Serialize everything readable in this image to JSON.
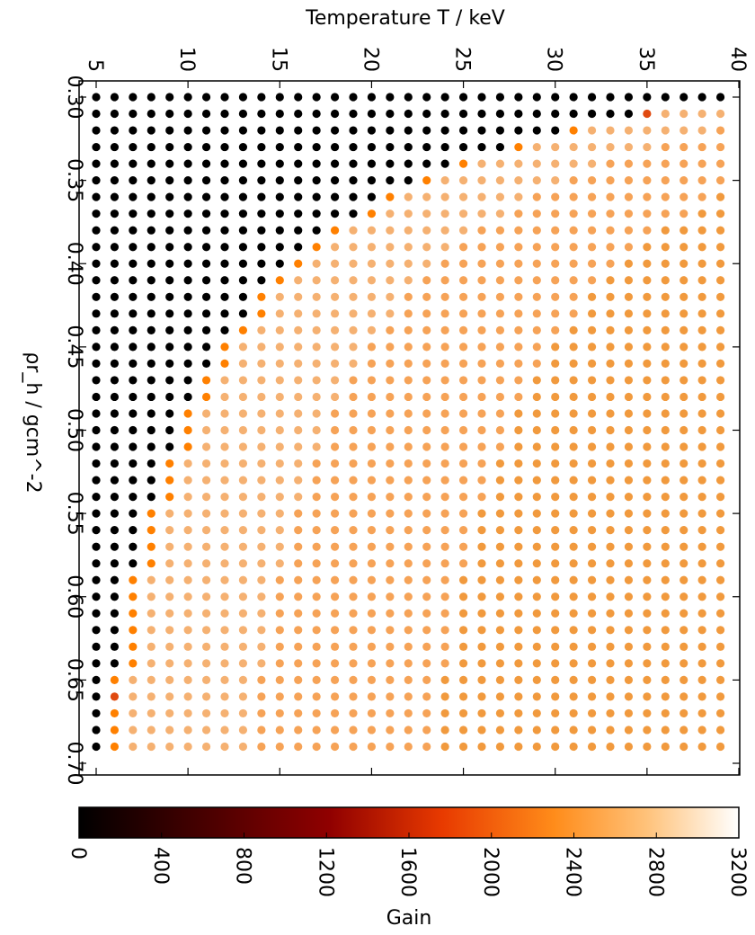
{
  "chart_data": {
    "type": "scatter",
    "xlabel": "Temperature T / keV",
    "ylabel": "ρr_h / gcm^-2",
    "xlim": [
      4,
      40.5
    ],
    "ylim": [
      0.295,
      0.7
    ],
    "x_ticks": [
      5,
      10,
      15,
      20,
      25,
      30,
      35,
      40
    ],
    "y_ticks": [
      "0.30",
      "0.35",
      "0.40",
      "0.45",
      "0.50",
      "0.55",
      "0.60",
      "0.65",
      "0.70"
    ],
    "x_values_start": 5,
    "x_values_end": 39,
    "x_values_step": 1,
    "y_values_start": 0.3,
    "y_values_end": 0.695,
    "y_values_step": 0.01,
    "ignition_boundary_T_by_rho": [
      {
        "rho": 0.3,
        "T": 40
      },
      {
        "rho": 0.31,
        "T": 35
      },
      {
        "rho": 0.32,
        "T": 31
      },
      {
        "rho": 0.33,
        "T": 28
      },
      {
        "rho": 0.34,
        "T": 25
      },
      {
        "rho": 0.35,
        "T": 23
      },
      {
        "rho": 0.36,
        "T": 21
      },
      {
        "rho": 0.37,
        "T": 20
      },
      {
        "rho": 0.38,
        "T": 18
      },
      {
        "rho": 0.39,
        "T": 17
      },
      {
        "rho": 0.4,
        "T": 16
      },
      {
        "rho": 0.41,
        "T": 15
      },
      {
        "rho": 0.42,
        "T": 14
      },
      {
        "rho": 0.43,
        "T": 14
      },
      {
        "rho": 0.44,
        "T": 13
      },
      {
        "rho": 0.45,
        "T": 12
      },
      {
        "rho": 0.46,
        "T": 12
      },
      {
        "rho": 0.47,
        "T": 11
      },
      {
        "rho": 0.48,
        "T": 11
      },
      {
        "rho": 0.49,
        "T": 10
      },
      {
        "rho": 0.5,
        "T": 10
      },
      {
        "rho": 0.51,
        "T": 10
      },
      {
        "rho": 0.52,
        "T": 9
      },
      {
        "rho": 0.53,
        "T": 9
      },
      {
        "rho": 0.54,
        "T": 9
      },
      {
        "rho": 0.55,
        "T": 8
      },
      {
        "rho": 0.56,
        "T": 8
      },
      {
        "rho": 0.57,
        "T": 8
      },
      {
        "rho": 0.58,
        "T": 8
      },
      {
        "rho": 0.59,
        "T": 7
      },
      {
        "rho": 0.6,
        "T": 7
      },
      {
        "rho": 0.61,
        "T": 7
      },
      {
        "rho": 0.62,
        "T": 7
      },
      {
        "rho": 0.63,
        "T": 7
      },
      {
        "rho": 0.64,
        "T": 7
      },
      {
        "rho": 0.65,
        "T": 6
      },
      {
        "rho": 0.66,
        "T": 6
      },
      {
        "rho": 0.67,
        "T": 6
      },
      {
        "rho": 0.68,
        "T": 6
      },
      {
        "rho": 0.69,
        "T": 6
      }
    ],
    "colorbar": {
      "label": "Gain",
      "min": 0,
      "max": 3200,
      "ticks": [
        "0",
        "400",
        "800",
        "1200",
        "1600",
        "2000",
        "2400",
        "2800",
        "3200"
      ],
      "colormap": "gist_heat"
    },
    "colors": {
      "no_ignition": "#000000",
      "gain_edge": "#ff8000",
      "gain_edge_red": "#e04a10",
      "gain_low": "#f5b172",
      "gain_mid": "#f6a357",
      "gain_high": "#f19a3e"
    }
  }
}
